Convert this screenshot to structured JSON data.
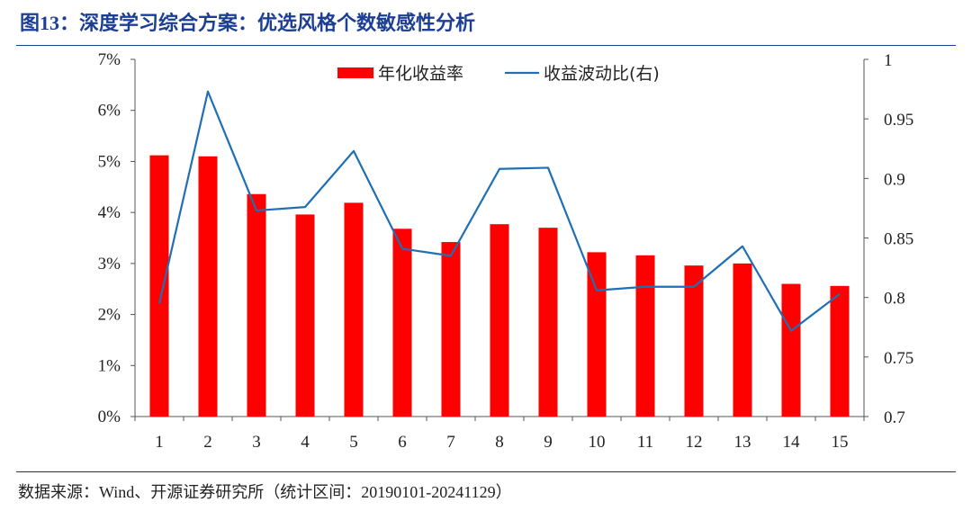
{
  "title": "图13：深度学习综合方案：优选风格个数敏感性分析",
  "source": "数据来源：Wind、开源证券研究所（统计区间：20190101-20241129）",
  "colors": {
    "bar": "#ff0000",
    "line": "#1f6fb4",
    "title": "#1c3f94"
  },
  "chart_data": {
    "type": "bar",
    "categories": [
      "1",
      "2",
      "3",
      "4",
      "5",
      "6",
      "7",
      "8",
      "9",
      "10",
      "11",
      "12",
      "13",
      "14",
      "15"
    ],
    "series": [
      {
        "name": "年化收益率",
        "type": "bar",
        "axis": "left",
        "values": [
          5.12,
          5.1,
          4.36,
          3.96,
          4.19,
          3.68,
          3.42,
          3.77,
          3.7,
          3.22,
          3.16,
          2.96,
          3.0,
          2.6,
          2.56
        ]
      },
      {
        "name": "收益波动比(右)",
        "type": "line",
        "axis": "right",
        "values": [
          0.795,
          0.973,
          0.873,
          0.876,
          0.923,
          0.841,
          0.835,
          0.908,
          0.909,
          0.806,
          0.809,
          0.809,
          0.843,
          0.772,
          0.803
        ]
      }
    ],
    "y_left": {
      "ylim": [
        0,
        7
      ],
      "ticks": [
        "0%",
        "1%",
        "2%",
        "3%",
        "4%",
        "5%",
        "6%",
        "7%"
      ]
    },
    "y_right": {
      "ylim": [
        0.7,
        1.0
      ],
      "ticks": [
        "0.7",
        "0.75",
        "0.8",
        "0.85",
        "0.9",
        "0.95",
        "1"
      ]
    },
    "legend_position": "top-center",
    "grid": false
  }
}
